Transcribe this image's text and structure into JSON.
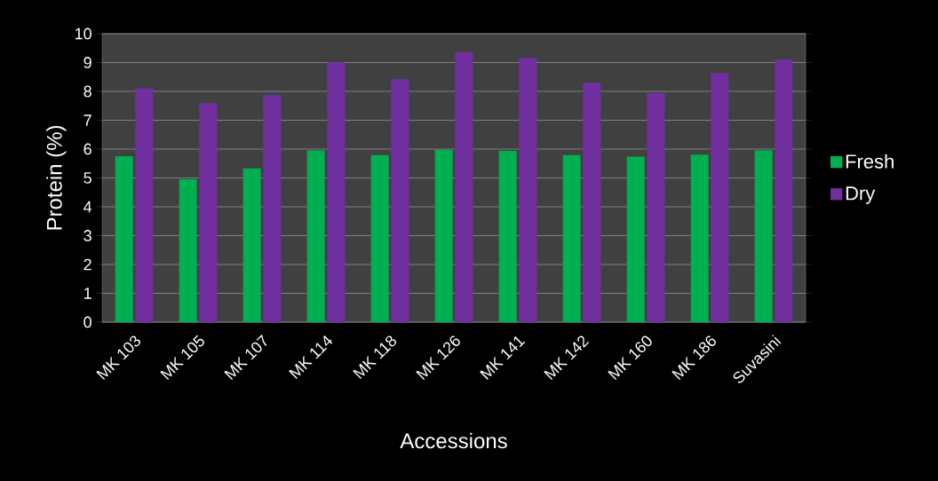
{
  "chart_data": {
    "type": "bar",
    "xlabel": "Accessions",
    "ylabel": "Protein (%)",
    "categories": [
      "MK 103",
      "MK 105",
      "MK 107",
      "MK 114",
      "MK 118",
      "MK 126",
      "MK 141",
      "MK 142",
      "MK 160",
      "MK 186",
      "Suvasini"
    ],
    "series": [
      {
        "name": "Fresh",
        "color": "#00b050",
        "values": [
          5.75,
          4.95,
          5.33,
          5.95,
          5.79,
          5.98,
          5.94,
          5.79,
          5.74,
          5.81,
          5.95
        ]
      },
      {
        "name": "Dry",
        "color": "#7030a0",
        "values": [
          8.11,
          7.59,
          7.87,
          9.01,
          8.42,
          9.37,
          9.16,
          8.3,
          7.94,
          8.64,
          9.1
        ]
      }
    ],
    "ylim": [
      0,
      10
    ],
    "yticks": [
      0,
      1,
      2,
      3,
      4,
      5,
      6,
      7,
      8,
      9,
      10
    ],
    "grid": "y",
    "legend": "right"
  }
}
